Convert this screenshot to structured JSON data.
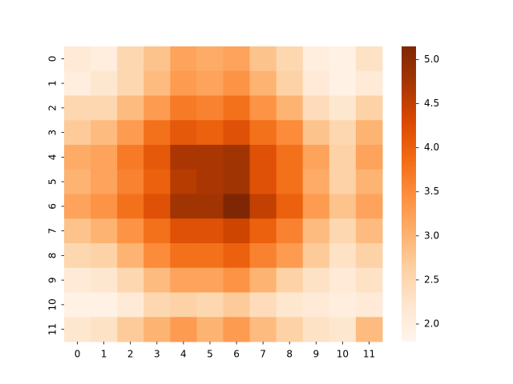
{
  "chart_data": {
    "type": "heatmap",
    "x": [
      0,
      1,
      2,
      3,
      4,
      5,
      6,
      7,
      8,
      9,
      10,
      11
    ],
    "y": [
      0,
      1,
      2,
      3,
      4,
      5,
      6,
      7,
      8,
      9,
      10,
      11
    ],
    "values": [
      [
        2.1,
        2.0,
        2.5,
        2.8,
        3.2,
        3.1,
        3.2,
        2.8,
        2.5,
        2.0,
        1.9,
        2.3
      ],
      [
        2.0,
        2.2,
        2.5,
        2.9,
        3.3,
        3.2,
        3.4,
        3.0,
        2.6,
        2.1,
        1.9,
        2.1
      ],
      [
        2.5,
        2.5,
        2.9,
        3.3,
        3.7,
        3.6,
        3.8,
        3.4,
        3.0,
        2.4,
        2.2,
        2.6
      ],
      [
        2.7,
        2.9,
        3.3,
        3.8,
        4.1,
        4.0,
        4.2,
        3.8,
        3.5,
        2.8,
        2.5,
        3.0
      ],
      [
        3.1,
        3.2,
        3.7,
        4.1,
        4.7,
        4.7,
        4.8,
        4.2,
        3.8,
        3.2,
        2.6,
        3.2
      ],
      [
        3.0,
        3.2,
        3.6,
        4.0,
        4.6,
        4.7,
        4.8,
        4.2,
        3.8,
        3.1,
        2.6,
        3.0
      ],
      [
        3.2,
        3.4,
        3.8,
        4.2,
        4.8,
        4.8,
        5.15,
        4.5,
        4.0,
        3.3,
        2.8,
        3.2
      ],
      [
        2.8,
        3.0,
        3.4,
        3.8,
        4.2,
        4.2,
        4.4,
        4.0,
        3.6,
        2.9,
        2.5,
        2.9
      ],
      [
        2.5,
        2.6,
        3.0,
        3.5,
        3.8,
        3.8,
        4.0,
        3.6,
        3.3,
        2.7,
        2.3,
        2.6
      ],
      [
        2.1,
        2.2,
        2.5,
        2.9,
        3.2,
        3.2,
        3.4,
        3.0,
        2.6,
        2.3,
        2.1,
        2.3
      ],
      [
        1.9,
        1.9,
        2.1,
        2.5,
        2.6,
        2.5,
        2.7,
        2.4,
        2.2,
        2.1,
        2.0,
        2.1
      ],
      [
        2.2,
        2.3,
        2.7,
        3.0,
        3.3,
        3.0,
        3.3,
        2.9,
        2.6,
        2.3,
        2.2,
        2.9
      ]
    ],
    "colormap": [
      "#fff5eb",
      "#fee6ce",
      "#fdd0a2",
      "#fdae6b",
      "#fd8d3c",
      "#f16913",
      "#d94801",
      "#a63603",
      "#7f2704"
    ],
    "zlim": [
      1.8,
      5.15
    ],
    "zticks": [
      {
        "value": 2.0,
        "label": "2.0"
      },
      2.5,
      {
        "value": 3.0,
        "label": "3.0"
      },
      3.5,
      {
        "value": 4.0,
        "label": "4.0"
      },
      4.5,
      {
        "value": 5.0,
        "label": "5.0"
      }
    ]
  }
}
